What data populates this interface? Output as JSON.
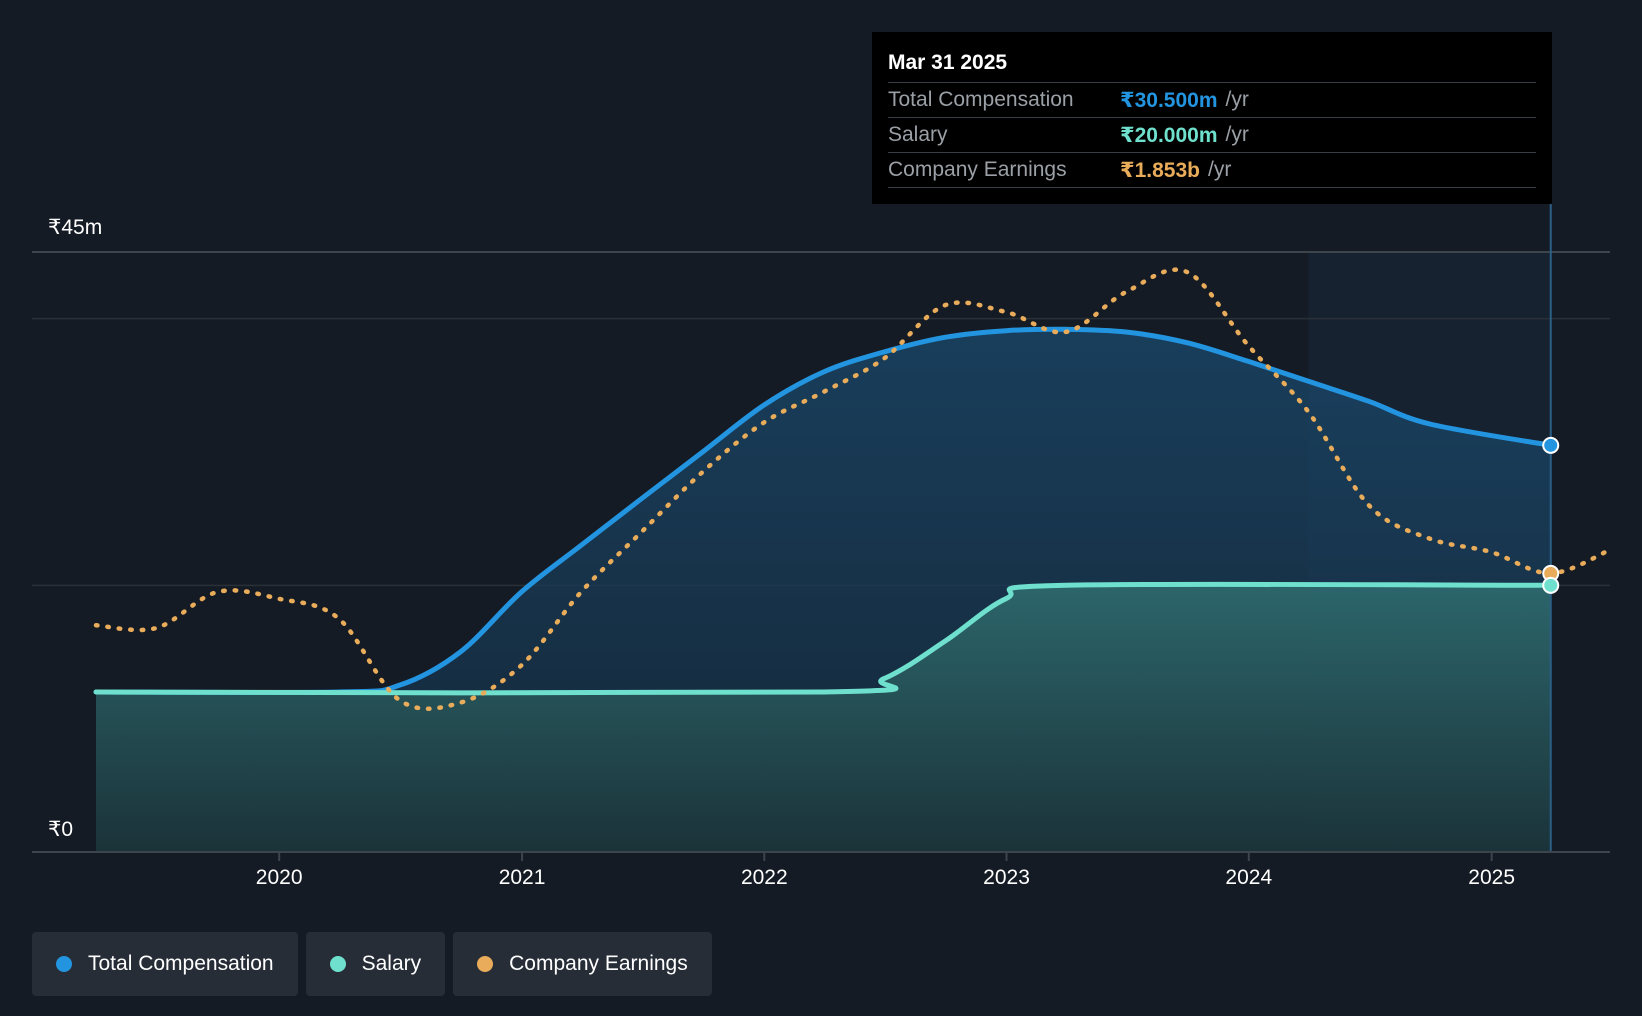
{
  "chart_data": {
    "type": "area",
    "y_axis": {
      "min": 0,
      "max": 45,
      "unit": "₹m",
      "top_label": "₹45m",
      "bottom_label": "₹0"
    },
    "x_axis": {
      "ticks": [
        "2020",
        "2021",
        "2022",
        "2023",
        "2024",
        "2025"
      ],
      "range": [
        "2019-03-31",
        "2025-06-30"
      ]
    },
    "forecast_region": {
      "start": "2024-03-31",
      "end": "2025-03-31"
    },
    "series": [
      {
        "name": "Total Compensation",
        "color": "#2394df",
        "style": "solid-area",
        "points": [
          {
            "x": "2019-03-31",
            "y": 12.0
          },
          {
            "x": "2020-03-31",
            "y": 12.0
          },
          {
            "x": "2020-06-30",
            "y": 12.5
          },
          {
            "x": "2020-09-30",
            "y": 15.0
          },
          {
            "x": "2020-12-31",
            "y": 19.5
          },
          {
            "x": "2021-03-31",
            "y": 23.0
          },
          {
            "x": "2021-06-30",
            "y": 26.5
          },
          {
            "x": "2021-09-30",
            "y": 30.0
          },
          {
            "x": "2021-12-31",
            "y": 33.5
          },
          {
            "x": "2022-03-31",
            "y": 36.0
          },
          {
            "x": "2022-06-30",
            "y": 37.5
          },
          {
            "x": "2022-09-30",
            "y": 38.6
          },
          {
            "x": "2022-12-31",
            "y": 39.1
          },
          {
            "x": "2023-03-31",
            "y": 39.2
          },
          {
            "x": "2023-06-30",
            "y": 39.0
          },
          {
            "x": "2023-09-30",
            "y": 38.2
          },
          {
            "x": "2023-12-31",
            "y": 36.8
          },
          {
            "x": "2024-03-31",
            "y": 35.3
          },
          {
            "x": "2024-06-30",
            "y": 33.8
          },
          {
            "x": "2024-09-30",
            "y": 32.1
          },
          {
            "x": "2025-03-31",
            "y": 30.5
          }
        ]
      },
      {
        "name": "Salary",
        "color": "#6ee0cd",
        "style": "solid-area",
        "points": [
          {
            "x": "2019-03-31",
            "y": 12.0
          },
          {
            "x": "2022-03-31",
            "y": 12.0
          },
          {
            "x": "2022-06-30",
            "y": 13.0
          },
          {
            "x": "2022-09-30",
            "y": 15.8
          },
          {
            "x": "2022-12-31",
            "y": 19.0
          },
          {
            "x": "2023-03-31",
            "y": 20.0
          },
          {
            "x": "2025-03-31",
            "y": 20.0
          }
        ]
      },
      {
        "name": "Company Earnings",
        "color": "#e8ac5a",
        "style": "dotted",
        "points": [
          {
            "x": "2019-03-31",
            "y": 17.0
          },
          {
            "x": "2019-06-30",
            "y": 16.8
          },
          {
            "x": "2019-09-30",
            "y": 19.5
          },
          {
            "x": "2019-12-31",
            "y": 19.0
          },
          {
            "x": "2020-03-31",
            "y": 17.5
          },
          {
            "x": "2020-06-30",
            "y": 11.4
          },
          {
            "x": "2020-09-30",
            "y": 11.2
          },
          {
            "x": "2020-12-31",
            "y": 14.0
          },
          {
            "x": "2021-03-31",
            "y": 19.5
          },
          {
            "x": "2021-06-30",
            "y": 24.0
          },
          {
            "x": "2021-09-30",
            "y": 28.5
          },
          {
            "x": "2021-12-31",
            "y": 32.2
          },
          {
            "x": "2022-03-31",
            "y": 34.5
          },
          {
            "x": "2022-06-30",
            "y": 37.0
          },
          {
            "x": "2022-09-30",
            "y": 41.0
          },
          {
            "x": "2022-12-31",
            "y": 40.5
          },
          {
            "x": "2023-03-31",
            "y": 39.0
          },
          {
            "x": "2023-06-30",
            "y": 42.0
          },
          {
            "x": "2023-09-30",
            "y": 43.5
          },
          {
            "x": "2023-12-31",
            "y": 38.0
          },
          {
            "x": "2024-03-31",
            "y": 33.0
          },
          {
            "x": "2024-06-30",
            "y": 26.0
          },
          {
            "x": "2024-09-30",
            "y": 23.5
          },
          {
            "x": "2024-12-31",
            "y": 22.5
          },
          {
            "x": "2025-03-31",
            "y": 20.9
          },
          {
            "x": "2025-06-30",
            "y": 22.7
          }
        ]
      }
    ]
  },
  "tooltip": {
    "date": "Mar 31 2025",
    "rows": [
      {
        "label": "Total Compensation",
        "value": "₹30.500m",
        "unit": "/yr",
        "color": "#2394df"
      },
      {
        "label": "Salary",
        "value": "₹20.000m",
        "unit": "/yr",
        "color": "#6ee0cd"
      },
      {
        "label": "Company Earnings",
        "value": "₹1.853b",
        "unit": "/yr",
        "color": "#e8ac5a"
      }
    ]
  },
  "legend": {
    "items": [
      {
        "label": "Total Compensation",
        "color": "#2394df"
      },
      {
        "label": "Salary",
        "color": "#6ee0cd"
      },
      {
        "label": "Company Earnings",
        "color": "#e8ac5a"
      }
    ]
  }
}
